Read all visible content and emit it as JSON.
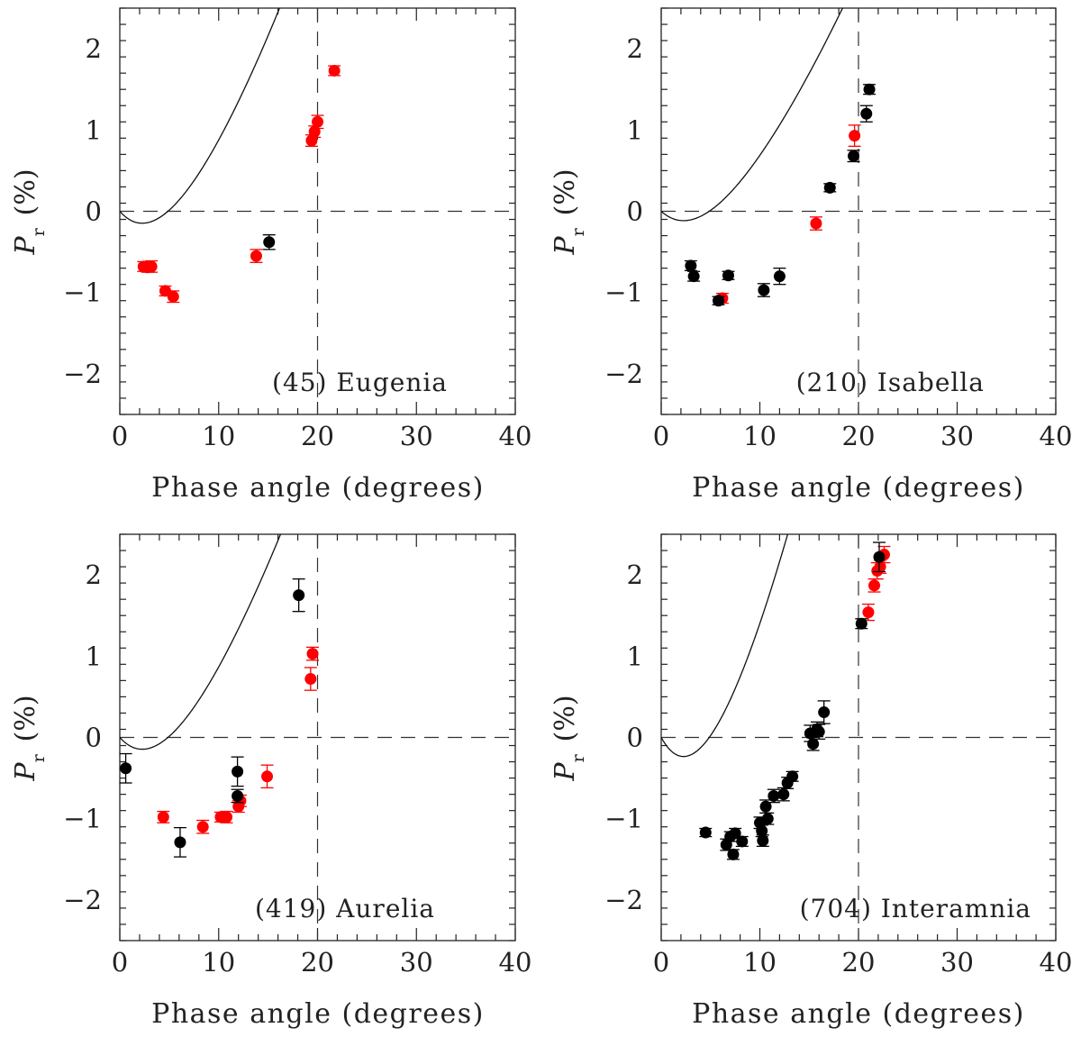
{
  "chart_data": [
    {
      "type": "scatter",
      "panel_label": "(45) Eugenia",
      "xlabel": "Phase angle (degrees)",
      "ylabel": "P",
      "ylabel_sub": "r",
      "ylabel_unit": "(%)",
      "xlim": [
        0,
        40
      ],
      "ylim": [
        -2.5,
        2.5
      ],
      "xticks": [
        0,
        10,
        20,
        30,
        40
      ],
      "xtick_labels": [
        "0",
        "10",
        "20",
        "30",
        "40"
      ],
      "yticks": [
        -2,
        -1,
        0,
        1,
        2
      ],
      "ytick_labels": [
        "−2",
        "−1",
        "0",
        "1",
        "2"
      ],
      "inversion_angle_marker": 20,
      "fit_curve": {
        "A": 1.72,
        "B": 0.088,
        "C": 17.0
      },
      "series": [
        {
          "name": "red",
          "color": "#ff0000",
          "points": [
            {
              "x": 2.4,
              "y": -0.68,
              "err": 0.06
            },
            {
              "x": 2.8,
              "y": -0.69,
              "err": 0.06
            },
            {
              "x": 3.2,
              "y": -0.68,
              "err": 0.07
            },
            {
              "x": 4.6,
              "y": -0.98,
              "err": 0.06
            },
            {
              "x": 5.4,
              "y": -1.05,
              "err": 0.07
            },
            {
              "x": 13.8,
              "y": -0.55,
              "err": 0.08
            },
            {
              "x": 19.4,
              "y": 0.87,
              "err": 0.07
            },
            {
              "x": 19.7,
              "y": 0.98,
              "err": 0.07
            },
            {
              "x": 20.0,
              "y": 1.1,
              "err": 0.08
            },
            {
              "x": 21.7,
              "y": 1.73,
              "err": 0.06
            }
          ]
        },
        {
          "name": "black",
          "color": "#000000",
          "points": [
            {
              "x": 15.1,
              "y": -0.38,
              "err": 0.09
            }
          ]
        }
      ]
    },
    {
      "type": "scatter",
      "panel_label": "(210) Isabella",
      "xlabel": "Phase angle (degrees)",
      "ylabel": "P",
      "ylabel_sub": "r",
      "ylabel_unit": "(%)",
      "xlim": [
        0,
        40
      ],
      "ylim": [
        -2.5,
        2.5
      ],
      "xticks": [
        0,
        10,
        20,
        30,
        40
      ],
      "xtick_labels": [
        "0",
        "10",
        "20",
        "30",
        "40"
      ],
      "yticks": [
        -2,
        -1,
        0,
        1,
        2
      ],
      "ytick_labels": [
        "−2",
        "−1",
        "0",
        "1",
        "2"
      ],
      "inversion_angle_marker": 20,
      "fit_curve": {
        "A": 1.35,
        "B": 0.088,
        "C": 16.5
      },
      "series": [
        {
          "name": "red",
          "color": "#ff0000",
          "points": [
            {
              "x": 6.2,
              "y": -1.07,
              "err": 0.06
            },
            {
              "x": 15.7,
              "y": -0.15,
              "err": 0.08
            },
            {
              "x": 19.6,
              "y": 0.93,
              "err": 0.13
            }
          ]
        },
        {
          "name": "black",
          "color": "#000000",
          "points": [
            {
              "x": 3.0,
              "y": -0.67,
              "err": 0.06
            },
            {
              "x": 3.3,
              "y": -0.8,
              "err": 0.06
            },
            {
              "x": 5.8,
              "y": -1.1,
              "err": 0.05
            },
            {
              "x": 6.8,
              "y": -0.79,
              "err": 0.05
            },
            {
              "x": 10.4,
              "y": -0.97,
              "err": 0.08
            },
            {
              "x": 12.0,
              "y": -0.8,
              "err": 0.1
            },
            {
              "x": 17.1,
              "y": 0.29,
              "err": 0.05
            },
            {
              "x": 19.5,
              "y": 0.68,
              "err": 0.07
            },
            {
              "x": 20.8,
              "y": 1.2,
              "err": 0.1
            },
            {
              "x": 21.1,
              "y": 1.5,
              "err": 0.06
            }
          ]
        }
      ]
    },
    {
      "type": "scatter",
      "panel_label": "(419) Aurelia",
      "xlabel": "Phase angle (degrees)",
      "ylabel": "P",
      "ylabel_sub": "r",
      "ylabel_unit": "(%)",
      "xlim": [
        0,
        40
      ],
      "ylim": [
        -2.5,
        2.5
      ],
      "xticks": [
        0,
        10,
        20,
        30,
        40
      ],
      "xtick_labels": [
        "0",
        "10",
        "20",
        "30",
        "40"
      ],
      "yticks": [
        -2,
        -1,
        0,
        1,
        2
      ],
      "ytick_labels": [
        "−2",
        "−1",
        "0",
        "1",
        "2"
      ],
      "inversion_angle_marker": 20,
      "fit_curve": {
        "A": 1.7,
        "B": 0.088,
        "C": 16.6
      },
      "series": [
        {
          "name": "red",
          "color": "#ff0000",
          "points": [
            {
              "x": 4.4,
              "y": -0.98,
              "err": 0.07
            },
            {
              "x": 8.4,
              "y": -1.1,
              "err": 0.08
            },
            {
              "x": 10.2,
              "y": -0.98,
              "err": 0.06
            },
            {
              "x": 10.8,
              "y": -0.98,
              "err": 0.07
            },
            {
              "x": 12.0,
              "y": -0.85,
              "err": 0.07
            },
            {
              "x": 12.2,
              "y": -0.78,
              "err": 0.07
            },
            {
              "x": 14.9,
              "y": -0.48,
              "err": 0.14
            },
            {
              "x": 19.3,
              "y": 0.72,
              "err": 0.14
            },
            {
              "x": 19.5,
              "y": 1.03,
              "err": 0.08
            }
          ]
        },
        {
          "name": "black",
          "color": "#000000",
          "points": [
            {
              "x": 0.6,
              "y": -0.38,
              "err": 0.18
            },
            {
              "x": 6.1,
              "y": -1.29,
              "err": 0.18
            },
            {
              "x": 11.9,
              "y": -0.42,
              "err": 0.18
            },
            {
              "x": 11.9,
              "y": -0.72,
              "err": 0.08
            },
            {
              "x": 18.1,
              "y": 1.75,
              "err": 0.2
            }
          ]
        }
      ]
    },
    {
      "type": "scatter",
      "panel_label": "(704) Interamnia",
      "xlabel": "Phase angle (degrees)",
      "ylabel": "P",
      "ylabel_sub": "r",
      "ylabel_unit": "(%)",
      "xlim": [
        0,
        40
      ],
      "ylim": [
        -2.5,
        2.5
      ],
      "xticks": [
        0,
        10,
        20,
        30,
        40
      ],
      "xtick_labels": [
        "0",
        "10",
        "20",
        "30",
        "40"
      ],
      "yticks": [
        -2,
        -1,
        0,
        1,
        2
      ],
      "ytick_labels": [
        "−2",
        "−1",
        "0",
        "1",
        "2"
      ],
      "inversion_angle_marker": 20,
      "fit_curve": {
        "A": 2.75,
        "B": 0.088,
        "C": 15.3
      },
      "series": [
        {
          "name": "red",
          "color": "#ff0000",
          "points": [
            {
              "x": 21.0,
              "y": 1.54,
              "err": 0.1
            },
            {
              "x": 21.6,
              "y": 1.87,
              "err": 0.08
            },
            {
              "x": 21.9,
              "y": 2.05,
              "err": 0.1
            },
            {
              "x": 22.2,
              "y": 2.1,
              "err": 0.08
            },
            {
              "x": 22.6,
              "y": 2.25,
              "err": 0.1
            }
          ]
        },
        {
          "name": "black",
          "color": "#000000",
          "points": [
            {
              "x": 4.5,
              "y": -1.17,
              "err": 0.05
            },
            {
              "x": 6.6,
              "y": -1.32,
              "err": 0.07
            },
            {
              "x": 7.0,
              "y": -1.22,
              "err": 0.06
            },
            {
              "x": 7.3,
              "y": -1.44,
              "err": 0.06
            },
            {
              "x": 7.5,
              "y": -1.18,
              "err": 0.06
            },
            {
              "x": 8.2,
              "y": -1.28,
              "err": 0.06
            },
            {
              "x": 10.0,
              "y": -1.05,
              "err": 0.07
            },
            {
              "x": 10.2,
              "y": -1.15,
              "err": 0.07
            },
            {
              "x": 10.3,
              "y": -1.27,
              "err": 0.07
            },
            {
              "x": 10.6,
              "y": -0.85,
              "err": 0.08
            },
            {
              "x": 10.8,
              "y": -1.0,
              "err": 0.07
            },
            {
              "x": 11.4,
              "y": -0.72,
              "err": 0.08
            },
            {
              "x": 12.4,
              "y": -0.7,
              "err": 0.08
            },
            {
              "x": 12.8,
              "y": -0.56,
              "err": 0.07
            },
            {
              "x": 13.3,
              "y": -0.48,
              "err": 0.06
            },
            {
              "x": 15.1,
              "y": 0.05,
              "err": 0.1
            },
            {
              "x": 15.4,
              "y": -0.08,
              "err": 0.08
            },
            {
              "x": 15.8,
              "y": 0.1,
              "err": 0.09
            },
            {
              "x": 16.0,
              "y": 0.07,
              "err": 0.09
            },
            {
              "x": 16.5,
              "y": 0.31,
              "err": 0.14
            },
            {
              "x": 20.3,
              "y": 1.4,
              "err": 0.06
            },
            {
              "x": 22.1,
              "y": 2.22,
              "err": 0.18
            }
          ]
        }
      ]
    }
  ]
}
